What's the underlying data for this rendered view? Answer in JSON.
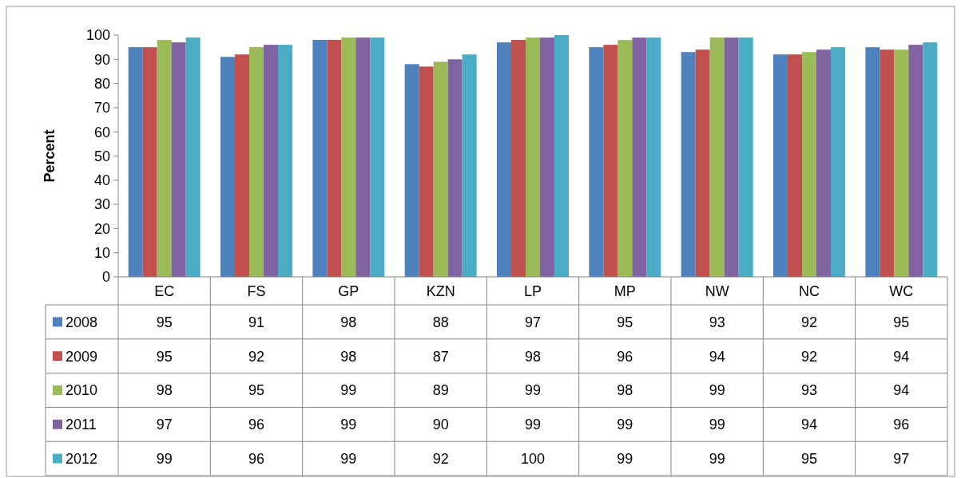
{
  "chart_data": {
    "type": "bar",
    "ylabel": "Percent",
    "categories": [
      "EC",
      "FS",
      "GP",
      "KZN",
      "LP",
      "MP",
      "NW",
      "NC",
      "WC"
    ],
    "series": [
      {
        "name": "2008",
        "color": "#4f81bd",
        "values": [
          95,
          91,
          98,
          88,
          97,
          95,
          93,
          92,
          95
        ]
      },
      {
        "name": "2009",
        "color": "#c0504d",
        "values": [
          95,
          92,
          98,
          87,
          98,
          96,
          94,
          92,
          94
        ]
      },
      {
        "name": "2010",
        "color": "#9bbb59",
        "values": [
          98,
          95,
          99,
          89,
          99,
          98,
          99,
          93,
          94
        ]
      },
      {
        "name": "2011",
        "color": "#8064a2",
        "values": [
          97,
          96,
          99,
          90,
          99,
          99,
          99,
          94,
          96
        ]
      },
      {
        "name": "2012",
        "color": "#4bacc6",
        "values": [
          99,
          96,
          99,
          92,
          100,
          99,
          99,
          95,
          97
        ]
      }
    ],
    "ylim": [
      0,
      100
    ],
    "yticks": [
      0,
      10,
      20,
      30,
      40,
      50,
      60,
      70,
      80,
      90,
      100
    ],
    "grid": false,
    "legend": "bottom",
    "data_labels": true
  }
}
